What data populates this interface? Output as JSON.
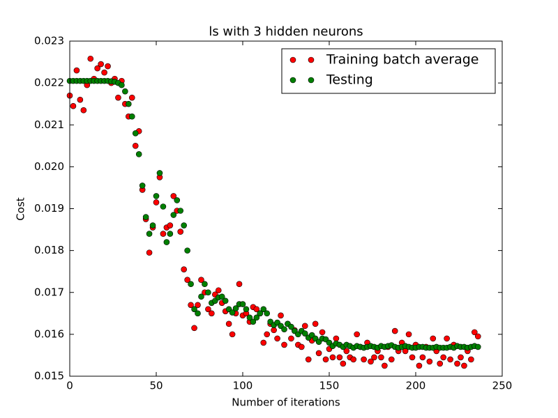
{
  "chart_data": {
    "type": "scatter",
    "title": "ls with 3 hidden neurons",
    "x_label": "Number of iterations",
    "y_label": "Cost",
    "x": [
      0,
      2,
      4,
      6,
      8,
      10,
      12,
      14,
      16,
      18,
      20,
      22,
      24,
      26,
      28,
      30,
      32,
      34,
      36,
      38,
      40,
      42,
      44,
      46,
      48,
      50,
      52,
      54,
      56,
      58,
      60,
      62,
      64,
      66,
      68,
      70,
      72,
      74,
      76,
      78,
      80,
      82,
      84,
      86,
      88,
      90,
      92,
      94,
      96,
      98,
      100,
      102,
      104,
      106,
      108,
      110,
      112,
      114,
      116,
      118,
      120,
      122,
      124,
      126,
      128,
      130,
      132,
      134,
      136,
      138,
      140,
      142,
      144,
      146,
      148,
      150,
      152,
      154,
      156,
      158,
      160,
      162,
      164,
      166,
      168,
      170,
      172,
      174,
      176,
      178,
      180,
      182,
      184,
      186,
      188,
      190,
      192,
      194,
      196,
      198,
      200,
      202,
      204,
      206,
      208,
      210,
      212,
      214,
      216,
      218,
      220,
      222,
      224,
      226,
      228,
      230,
      232,
      234,
      236
    ],
    "series": [
      {
        "name": "Training batch average",
        "color": "#ff0000",
        "values": [
          0.0217,
          0.02145,
          0.0223,
          0.0216,
          0.02135,
          0.02195,
          0.02258,
          0.0221,
          0.02235,
          0.02245,
          0.02225,
          0.0224,
          0.022,
          0.0221,
          0.02165,
          0.02205,
          0.0215,
          0.0212,
          0.02165,
          0.0205,
          0.02085,
          0.01945,
          0.01875,
          0.01795,
          0.01855,
          0.01915,
          0.01975,
          0.0184,
          0.01855,
          0.0186,
          0.0193,
          0.01895,
          0.01845,
          0.01755,
          0.0173,
          0.0167,
          0.01615,
          0.0167,
          0.0173,
          0.017,
          0.0166,
          0.0165,
          0.01695,
          0.01705,
          0.01675,
          0.01655,
          0.01625,
          0.016,
          0.0165,
          0.0172,
          0.01645,
          0.0165,
          0.0163,
          0.01665,
          0.0166,
          0.0165,
          0.0158,
          0.016,
          0.01625,
          0.0161,
          0.0159,
          0.01645,
          0.01575,
          0.01625,
          0.0159,
          0.0161,
          0.01575,
          0.0157,
          0.0162,
          0.0154,
          0.01585,
          0.01625,
          0.01555,
          0.01605,
          0.0154,
          0.01565,
          0.01545,
          0.0159,
          0.01545,
          0.0153,
          0.0156,
          0.01545,
          0.0154,
          0.016,
          0.0157,
          0.0154,
          0.0158,
          0.01535,
          0.01545,
          0.0156,
          0.01545,
          0.01525,
          0.0157,
          0.0154,
          0.01608,
          0.0156,
          0.0158,
          0.0156,
          0.016,
          0.01545,
          0.01575,
          0.01525,
          0.01545,
          0.0157,
          0.01535,
          0.0159,
          0.0156,
          0.0153,
          0.01545,
          0.0159,
          0.0154,
          0.01575,
          0.0153,
          0.01545,
          0.01525,
          0.0156,
          0.0154,
          0.01605,
          0.01595
        ]
      },
      {
        "name": "Testing",
        "color": "#008000",
        "values": [
          0.02205,
          0.02205,
          0.02205,
          0.02205,
          0.02205,
          0.02205,
          0.02205,
          0.02205,
          0.02205,
          0.02205,
          0.02205,
          0.02205,
          0.02204,
          0.02203,
          0.022,
          0.02195,
          0.0218,
          0.0215,
          0.0212,
          0.0208,
          0.0203,
          0.01955,
          0.0188,
          0.0184,
          0.0186,
          0.0193,
          0.01985,
          0.01905,
          0.0182,
          0.0184,
          0.01885,
          0.0192,
          0.01895,
          0.0186,
          0.018,
          0.0172,
          0.0166,
          0.0165,
          0.0169,
          0.0172,
          0.017,
          0.01675,
          0.0168,
          0.01688,
          0.0169,
          0.0168,
          0.0166,
          0.01652,
          0.01662,
          0.01672,
          0.01672,
          0.0166,
          0.0164,
          0.0163,
          0.0164,
          0.0165,
          0.0166,
          0.0165,
          0.0163,
          0.01622,
          0.01628,
          0.0162,
          0.01612,
          0.01625,
          0.01618,
          0.01608,
          0.016,
          0.01608,
          0.01602,
          0.01592,
          0.01598,
          0.0159,
          0.01582,
          0.0159,
          0.01588,
          0.0158,
          0.01572,
          0.01578,
          0.01575,
          0.0157,
          0.01575,
          0.01572,
          0.01568,
          0.01572,
          0.0157,
          0.01568,
          0.0157,
          0.01572,
          0.0157,
          0.01568,
          0.01572,
          0.0157,
          0.01572,
          0.01574,
          0.0157,
          0.01568,
          0.0157,
          0.01572,
          0.0157,
          0.01568,
          0.01568,
          0.0157,
          0.0157,
          0.01568,
          0.01568,
          0.01568,
          0.0157,
          0.01568,
          0.01568,
          0.01568,
          0.0157,
          0.01568,
          0.01572,
          0.0157,
          0.0157,
          0.01568,
          0.0157,
          0.01572,
          0.0157
        ]
      }
    ],
    "xlim": [
      0,
      250
    ],
    "xticks": [
      0,
      50,
      100,
      150,
      200,
      250
    ],
    "ylim": [
      0.015,
      0.023
    ],
    "yticks": [
      0.015,
      0.016,
      0.017,
      0.018,
      0.019,
      {
        "value": 0.02,
        "label": "0.020"
      },
      0.021,
      0.022,
      0.023
    ],
    "legend": "upper right"
  }
}
